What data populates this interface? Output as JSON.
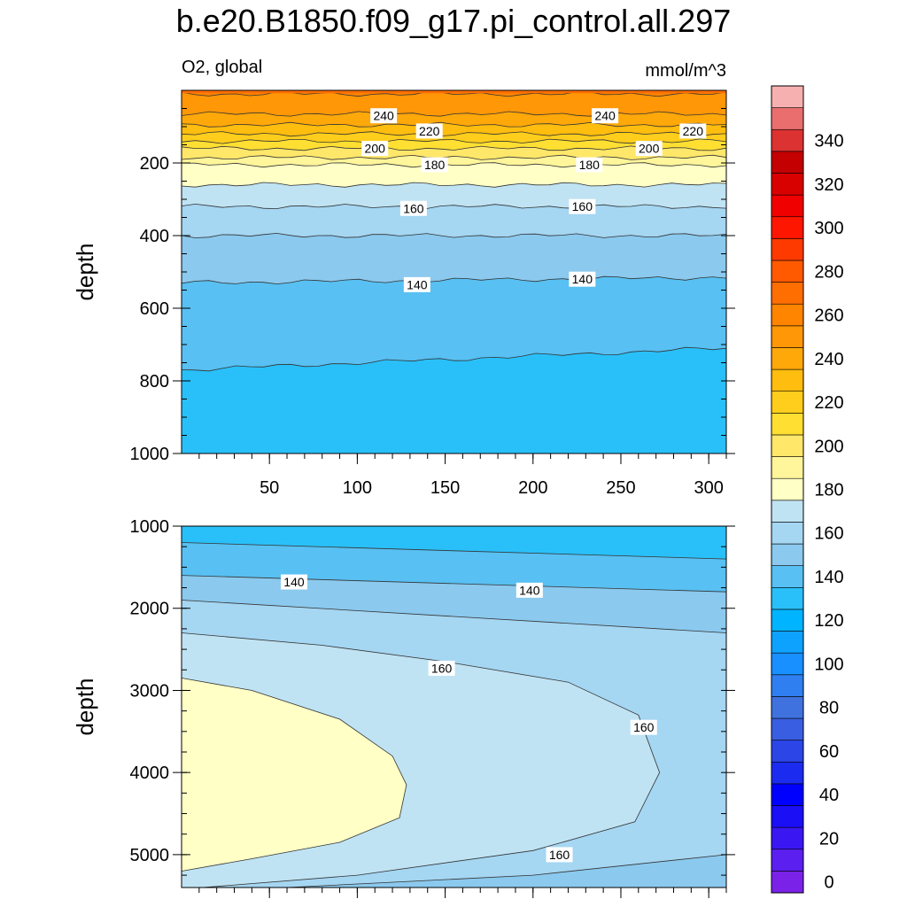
{
  "figure": {
    "title": "b.e20.B1850.f09_g17.pi_control.all.297",
    "variable_label": "O2, global",
    "units_label": "mmol/m^3"
  },
  "colors": {
    "levels": [
      0,
      10,
      20,
      30,
      40,
      50,
      60,
      70,
      80,
      90,
      100,
      110,
      120,
      130,
      140,
      150,
      160,
      170,
      180,
      190,
      200,
      210,
      220,
      230,
      240,
      250,
      260,
      270,
      280,
      290,
      300,
      310,
      320,
      330,
      340,
      350
    ],
    "fills": [
      "#7b22e8",
      "#5b1ff0",
      "#3a17f2",
      "#1a0ff5",
      "#0000ff",
      "#1b2cf0",
      "#2b45e6",
      "#3a5ee2",
      "#3f72de",
      "#2f7ff0",
      "#1890ff",
      "#0ea2ff",
      "#00b4ff",
      "#29c0f9",
      "#58c0f2",
      "#8bc9ee",
      "#a5d6f2",
      "#bfe3f3",
      "#ffffc6",
      "#fff59a",
      "#ffe76a",
      "#ffdf32",
      "#ffce1c",
      "#ffbd0f",
      "#ffa80a",
      "#ff9707",
      "#ff8400",
      "#ff6e00",
      "#ff5a00",
      "#ff3a00",
      "#ff1600",
      "#f10000",
      "#d90000",
      "#c40000",
      "#dc3232",
      "#ea6e6e",
      "#f7b0b0"
    ]
  },
  "chart_data": [
    {
      "type": "contour",
      "panel": "upper",
      "x": [
        0,
        310
      ],
      "xticks": [
        50,
        100,
        150,
        200,
        250,
        300
      ],
      "ylabel": "depth",
      "ylim": [
        0,
        1000
      ],
      "y_reversed": true,
      "yticks": [
        200,
        400,
        600,
        800,
        1000
      ],
      "contours": [
        {
          "level": 250,
          "depths": [
            10,
            10
          ]
        },
        {
          "level": 240,
          "depths": [
            65,
            65
          ]
        },
        {
          "level": 230,
          "depths": [
            95,
            95
          ]
        },
        {
          "level": 220,
          "depths": [
            120,
            120
          ]
        },
        {
          "level": 210,
          "depths": [
            140,
            140
          ]
        },
        {
          "level": 200,
          "depths": [
            160,
            160
          ]
        },
        {
          "level": 190,
          "depths": [
            185,
            185
          ]
        },
        {
          "level": 180,
          "depths": [
            205,
            205
          ]
        },
        {
          "level": 170,
          "depths": [
            260,
            260
          ]
        },
        {
          "level": 160,
          "depths": [
            320,
            320
          ]
        },
        {
          "level": 150,
          "depths": [
            400,
            400
          ]
        },
        {
          "level": 140,
          "depths": [
            530,
            515
          ]
        },
        {
          "level": 130,
          "depths": [
            770,
            710
          ]
        }
      ],
      "line_labels": [
        {
          "text": "240",
          "x": 115,
          "y": 70
        },
        {
          "text": "240",
          "x": 241,
          "y": 70
        },
        {
          "text": "220",
          "x": 141,
          "y": 112
        },
        {
          "text": "220",
          "x": 291,
          "y": 112
        },
        {
          "text": "200",
          "x": 110,
          "y": 160
        },
        {
          "text": "200",
          "x": 266,
          "y": 160
        },
        {
          "text": "180",
          "x": 144,
          "y": 205
        },
        {
          "text": "180",
          "x": 232,
          "y": 205
        },
        {
          "text": "160",
          "x": 132,
          "y": 325
        },
        {
          "text": "160",
          "x": 228,
          "y": 320
        },
        {
          "text": "140",
          "x": 134,
          "y": 535
        },
        {
          "text": "140",
          "x": 228,
          "y": 520
        }
      ]
    },
    {
      "type": "contour",
      "panel": "lower",
      "x": [
        0,
        310
      ],
      "ylabel": "depth",
      "ylim": [
        1000,
        5400
      ],
      "y_reversed": true,
      "yticks": [
        1000,
        2000,
        3000,
        4000,
        5000
      ],
      "contours": [
        {
          "level": 130,
          "depths": [
            1200,
            1400
          ]
        },
        {
          "level": 140,
          "depths": [
            1600,
            1800
          ]
        },
        {
          "level": 150,
          "depths": [
            1900,
            2300
          ]
        },
        {
          "level": 160,
          "depths": [
            2300,
            4000,
            5400
          ]
        },
        {
          "level": 170,
          "depths": [
            2850,
            4150,
            5200
          ]
        },
        {
          "level": 150,
          "depths": [
            5400,
            5000
          ]
        }
      ],
      "line_labels": [
        {
          "text": "140",
          "x": 64,
          "y": 1680
        },
        {
          "text": "140",
          "x": 198,
          "y": 1780
        },
        {
          "text": "160",
          "x": 148,
          "y": 2730
        },
        {
          "text": "160",
          "x": 263,
          "y": 3450
        },
        {
          "text": "160",
          "x": 215,
          "y": 5000
        }
      ]
    }
  ],
  "colorbar": {
    "labels": [
      "0",
      "20",
      "40",
      "60",
      "80",
      "100",
      "120",
      "140",
      "160",
      "180",
      "200",
      "220",
      "240",
      "260",
      "280",
      "300",
      "320",
      "340"
    ]
  }
}
